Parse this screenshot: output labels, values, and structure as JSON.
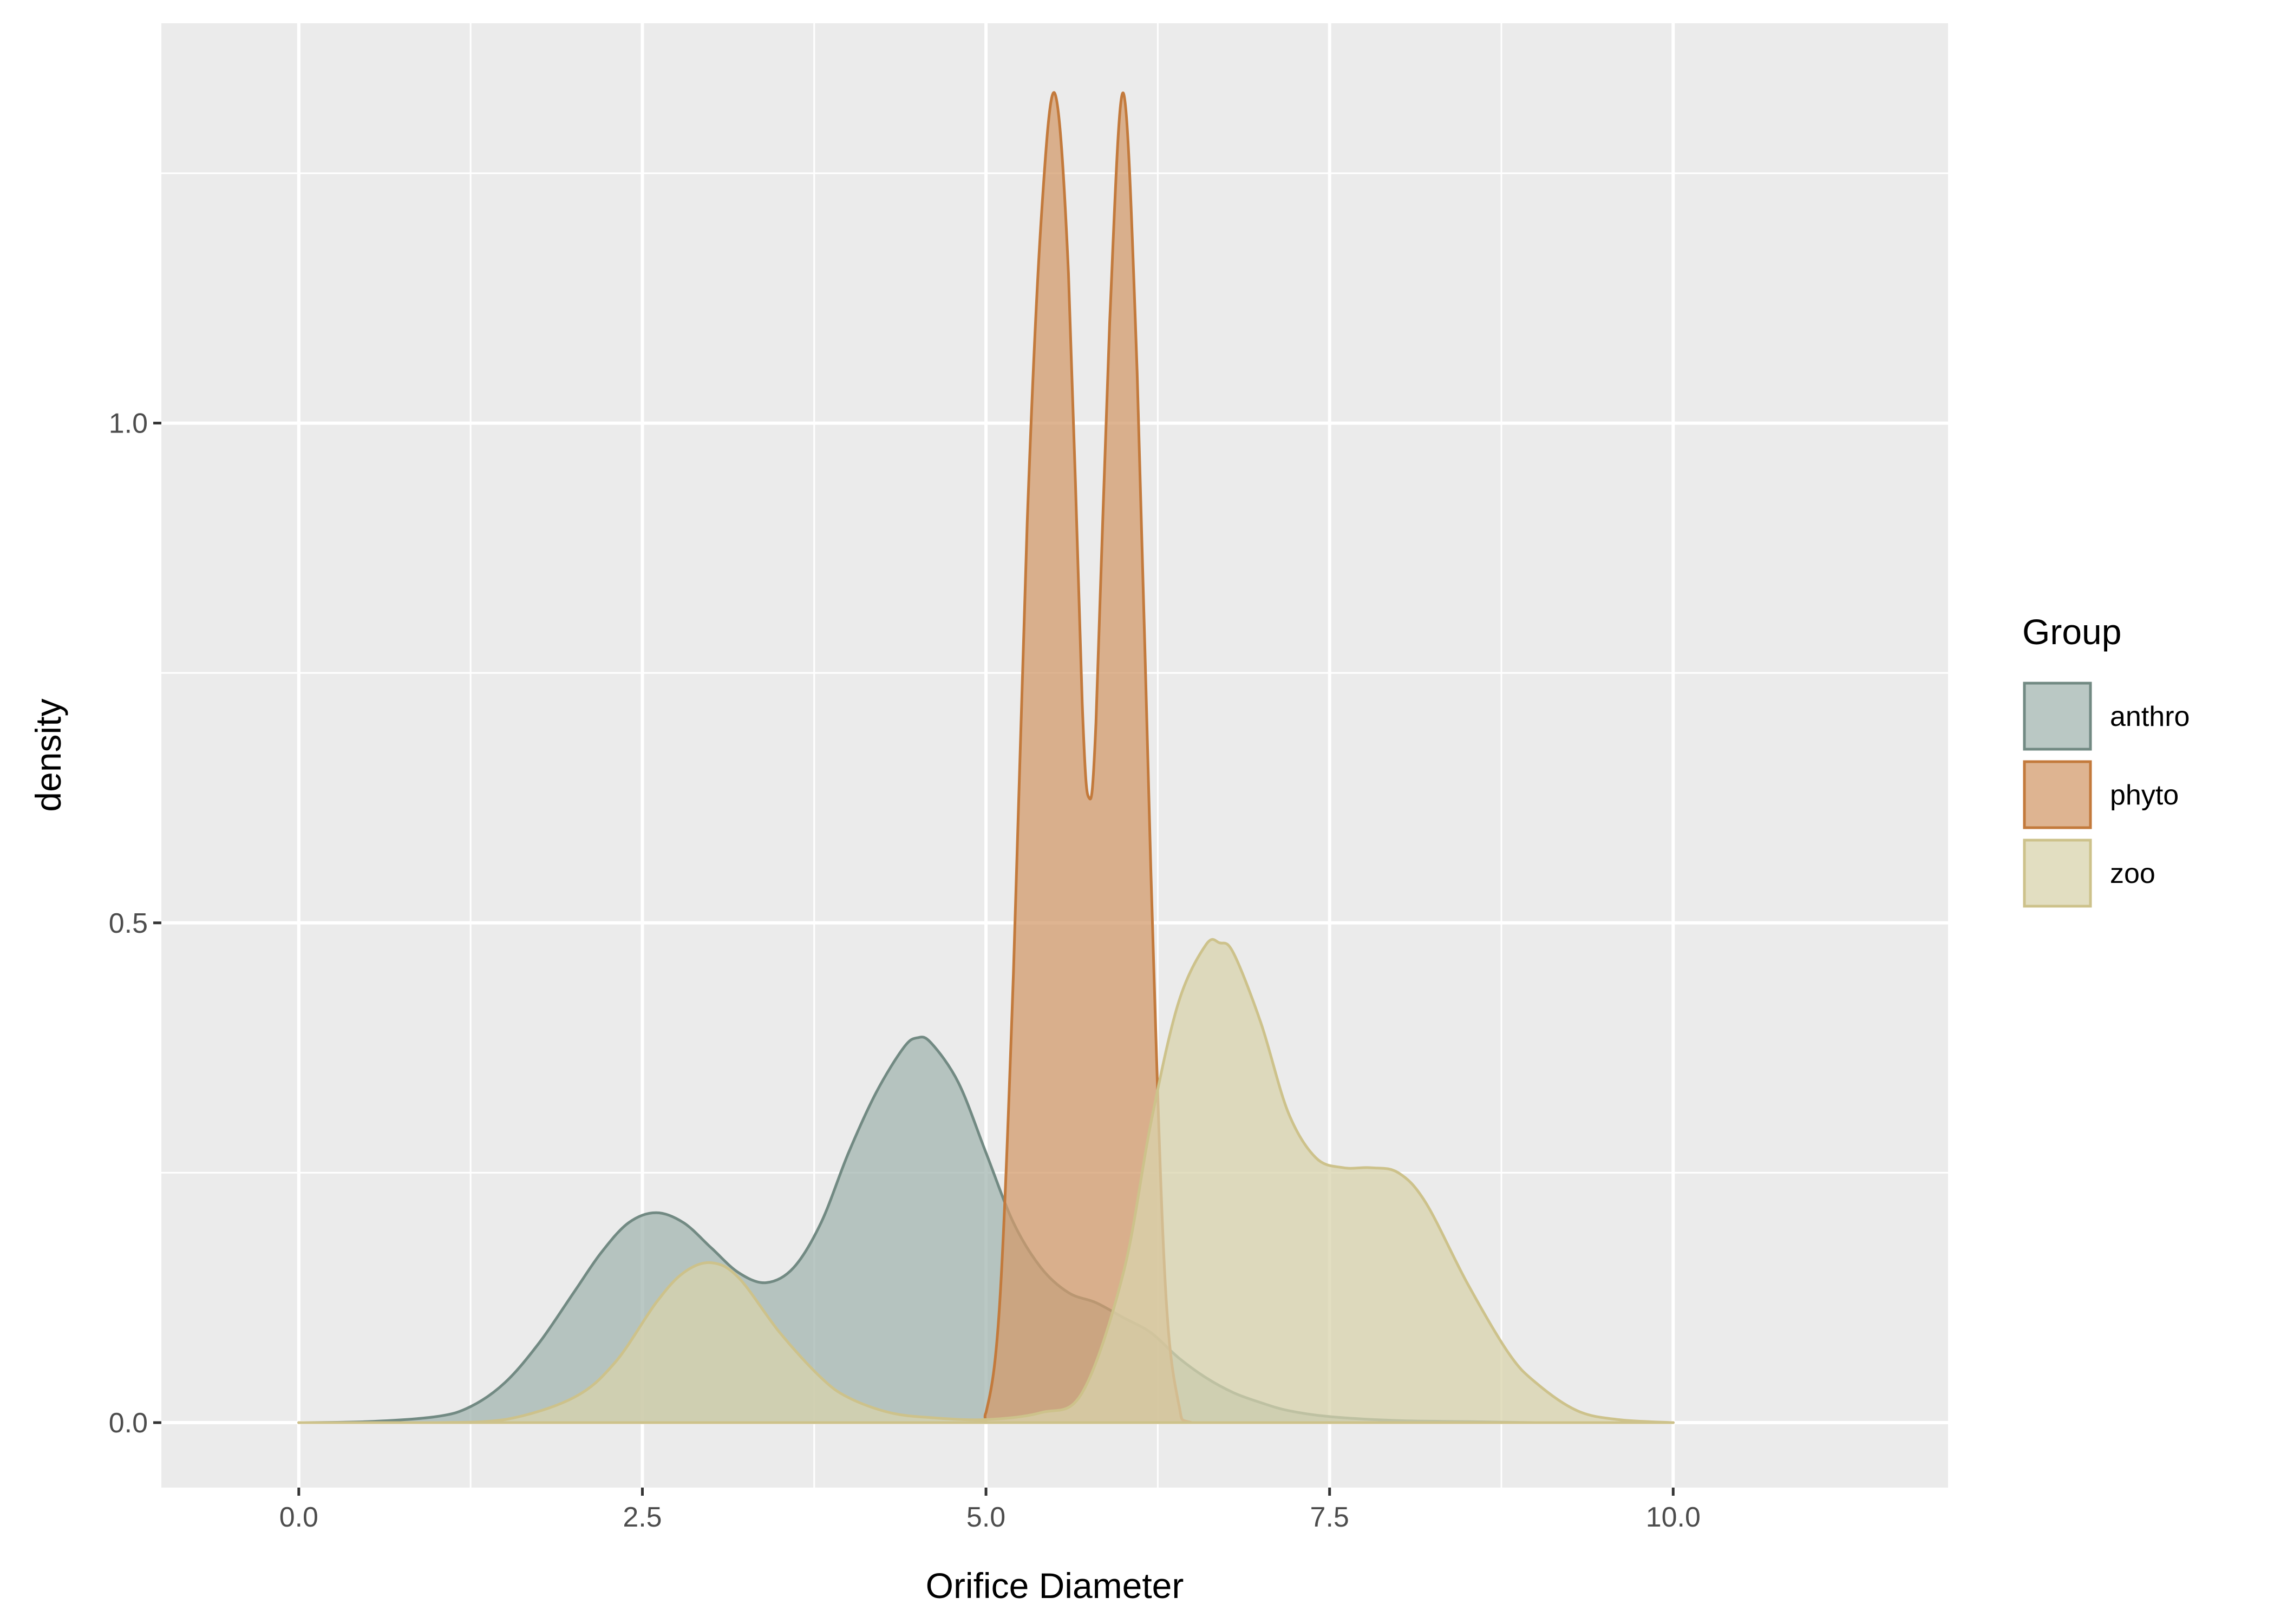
{
  "chart_data": {
    "type": "area",
    "xlabel": "Orifice Diameter",
    "ylabel": "density",
    "xlim": [
      -1,
      12
    ],
    "ylim": [
      -0.065,
      1.4
    ],
    "x_ticks": [
      0.0,
      2.5,
      5.0,
      7.5,
      10.0
    ],
    "x_tick_labels": [
      "0.0",
      "2.5",
      "5.0",
      "7.5",
      "10.0"
    ],
    "y_ticks": [
      0.0,
      0.5,
      1.0
    ],
    "y_tick_labels": [
      "0.0",
      "0.5",
      "1.0"
    ],
    "grid": true,
    "legend": {
      "title": "Group",
      "position": "right",
      "items": [
        "anthro",
        "phyto",
        "zoo"
      ]
    },
    "series": [
      {
        "name": "anthro",
        "fill": "#a3b5b0",
        "stroke": "#728a83",
        "x": [
          0,
          0.5,
          1.0,
          1.25,
          1.5,
          1.75,
          2.0,
          2.2,
          2.4,
          2.6,
          2.8,
          3.0,
          3.2,
          3.4,
          3.6,
          3.8,
          4.0,
          4.2,
          4.4,
          4.5,
          4.6,
          4.8,
          5.0,
          5.2,
          5.4,
          5.6,
          5.8,
          6.0,
          6.2,
          6.4,
          6.6,
          6.8,
          7.0,
          7.2,
          7.5,
          8.0,
          8.5,
          9.0,
          9.5,
          10.0
        ],
        "y": [
          0.0,
          0.001,
          0.006,
          0.016,
          0.04,
          0.08,
          0.13,
          0.17,
          0.2,
          0.21,
          0.2,
          0.175,
          0.15,
          0.14,
          0.155,
          0.2,
          0.27,
          0.33,
          0.375,
          0.385,
          0.38,
          0.34,
          0.27,
          0.2,
          0.155,
          0.13,
          0.12,
          0.105,
          0.09,
          0.065,
          0.045,
          0.03,
          0.02,
          0.012,
          0.006,
          0.002,
          0.001,
          0.0,
          0.0,
          0.0
        ]
      },
      {
        "name": "phyto",
        "fill": "#d39b6c",
        "stroke": "#c37a3c",
        "x": [
          0,
          4.0,
          4.9,
          5.0,
          5.1,
          5.2,
          5.3,
          5.4,
          5.5,
          5.6,
          5.7,
          5.75,
          5.8,
          5.9,
          6.0,
          6.1,
          6.2,
          6.3,
          6.4,
          6.5,
          7.0,
          10.0
        ],
        "y": [
          0.0,
          0.0,
          0.0,
          0.01,
          0.12,
          0.45,
          0.9,
          1.2,
          1.33,
          1.15,
          0.72,
          0.625,
          0.7,
          1.1,
          1.33,
          1.05,
          0.55,
          0.15,
          0.02,
          0.0,
          0.0,
          0.0
        ]
      },
      {
        "name": "zoo",
        "fill": "#d8d3ac",
        "stroke": "#cdc28b",
        "x": [
          0,
          1.0,
          1.5,
          2.0,
          2.3,
          2.6,
          2.8,
          3.0,
          3.2,
          3.5,
          3.8,
          4.0,
          4.3,
          4.6,
          5.0,
          5.4,
          5.7,
          6.0,
          6.2,
          6.4,
          6.6,
          6.7,
          6.8,
          7.0,
          7.2,
          7.4,
          7.6,
          7.8,
          8.0,
          8.2,
          8.5,
          8.8,
          9.0,
          9.3,
          9.6,
          10.0
        ],
        "y": [
          0.0,
          0.0,
          0.003,
          0.025,
          0.06,
          0.12,
          0.15,
          0.16,
          0.145,
          0.09,
          0.045,
          0.025,
          0.01,
          0.005,
          0.003,
          0.01,
          0.03,
          0.15,
          0.3,
          0.42,
          0.478,
          0.48,
          0.47,
          0.4,
          0.31,
          0.265,
          0.255,
          0.255,
          0.25,
          0.22,
          0.14,
          0.07,
          0.04,
          0.012,
          0.003,
          0.0
        ]
      }
    ]
  }
}
